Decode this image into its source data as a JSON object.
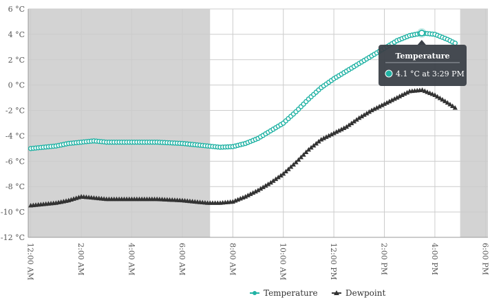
{
  "chart_data": {
    "type": "line",
    "y_unit": "°C",
    "ylim": [
      -12,
      6
    ],
    "y_ticks": [
      -12,
      -10,
      -8,
      -6,
      -4,
      -2,
      0,
      2,
      4,
      6
    ],
    "y_tick_labels": [
      "-12 °C",
      "-10 °C",
      "-8 °C",
      "-6 °C",
      "-4 °C",
      "-2 °C",
      "0 °C",
      "2 °C",
      "4 °C",
      "6 °C"
    ],
    "x_tick_labels": [
      "12:00 AM",
      "2:00 AM",
      "4:00 AM",
      "6:00 AM",
      "8:00 AM",
      "10:00 AM",
      "12:00 PM",
      "2:00 PM",
      "4:00 PM",
      "6:00 PM"
    ],
    "x_tick_hours": [
      0,
      2,
      4,
      6,
      8,
      10,
      12,
      14,
      16,
      18
    ],
    "xlim_hours": [
      -0.1,
      18.1
    ],
    "shaded_hour_ranges": [
      [
        -0.1,
        7.1
      ],
      [
        17.0,
        18.1
      ]
    ],
    "grid": true,
    "legend_position": "bottom",
    "colors": {
      "temperature": "#20b2a4",
      "dewpoint": "#333333",
      "shade": "#d3d3d3",
      "grid": "#cccccc"
    },
    "series": [
      {
        "name": "Temperature",
        "marker": "circle",
        "points": [
          [
            0.0,
            -5.0
          ],
          [
            1.0,
            -4.8
          ],
          [
            1.5,
            -4.6
          ],
          [
            2.0,
            -4.5
          ],
          [
            2.5,
            -4.4
          ],
          [
            3.0,
            -4.5
          ],
          [
            4.0,
            -4.5
          ],
          [
            5.0,
            -4.5
          ],
          [
            6.0,
            -4.6
          ],
          [
            6.5,
            -4.7
          ],
          [
            7.0,
            -4.8
          ],
          [
            7.5,
            -4.9
          ],
          [
            8.0,
            -4.85
          ],
          [
            8.5,
            -4.6
          ],
          [
            9.0,
            -4.2
          ],
          [
            9.5,
            -3.6
          ],
          [
            10.0,
            -3.0
          ],
          [
            10.5,
            -2.1
          ],
          [
            11.0,
            -1.1
          ],
          [
            11.5,
            -0.2
          ],
          [
            12.0,
            0.5
          ],
          [
            12.5,
            1.1
          ],
          [
            13.0,
            1.7
          ],
          [
            13.5,
            2.3
          ],
          [
            14.0,
            2.9
          ],
          [
            14.5,
            3.5
          ],
          [
            15.0,
            3.9
          ],
          [
            15.5,
            4.1
          ],
          [
            16.0,
            4.0
          ],
          [
            16.5,
            3.6
          ],
          [
            16.8,
            3.3
          ]
        ]
      },
      {
        "name": "Dewpoint",
        "marker": "triangle",
        "points": [
          [
            0.0,
            -9.5
          ],
          [
            1.0,
            -9.3
          ],
          [
            1.5,
            -9.1
          ],
          [
            2.0,
            -8.8
          ],
          [
            2.5,
            -8.9
          ],
          [
            3.0,
            -9.0
          ],
          [
            4.0,
            -9.0
          ],
          [
            5.0,
            -9.0
          ],
          [
            6.0,
            -9.1
          ],
          [
            6.5,
            -9.2
          ],
          [
            7.0,
            -9.3
          ],
          [
            7.5,
            -9.3
          ],
          [
            8.0,
            -9.2
          ],
          [
            8.5,
            -8.8
          ],
          [
            9.0,
            -8.3
          ],
          [
            9.5,
            -7.7
          ],
          [
            10.0,
            -7.0
          ],
          [
            10.5,
            -6.1
          ],
          [
            11.0,
            -5.1
          ],
          [
            11.5,
            -4.3
          ],
          [
            12.0,
            -3.8
          ],
          [
            12.5,
            -3.3
          ],
          [
            13.0,
            -2.6
          ],
          [
            13.5,
            -2.0
          ],
          [
            14.0,
            -1.5
          ],
          [
            14.5,
            -1.0
          ],
          [
            15.0,
            -0.5
          ],
          [
            15.5,
            -0.4
          ],
          [
            16.0,
            -0.8
          ],
          [
            16.5,
            -1.4
          ],
          [
            16.8,
            -1.8
          ]
        ]
      }
    ],
    "tooltip": {
      "title": "Temperature",
      "text": "4.1 °C at 3:29 PM",
      "x_hour": 15.48,
      "y_value": 4.1
    }
  }
}
